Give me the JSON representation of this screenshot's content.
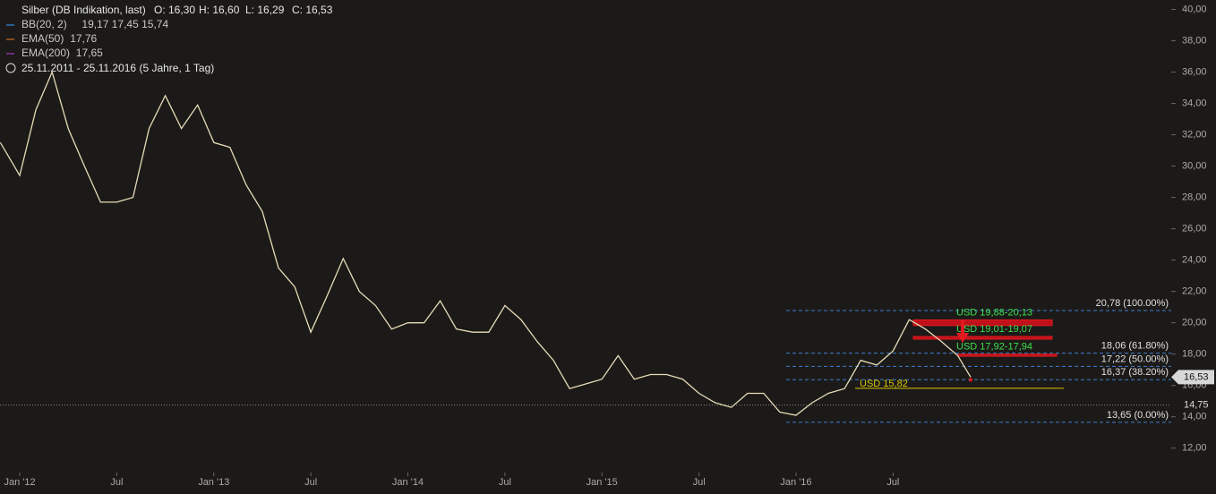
{
  "chart_data": {
    "type": "line",
    "title": "Silber (DB Indikation, last)",
    "ohlc": [
      "O: 16,30",
      "H: 16,60",
      "L: 16,29",
      "C: 16,53"
    ],
    "indicators": [
      {
        "name": "BB(20, 2)",
        "color": "#2b5f94",
        "text": "19,17  17,45  15,74"
      },
      {
        "name": "EMA(50)",
        "color": "#8a4a1e",
        "text": "17,76"
      },
      {
        "name": "EMA(200)",
        "color": "#6a2a80",
        "text": "17,65"
      }
    ],
    "period": "25.11.2011 - 25.11.2016  (5 Jahre, 1 Tag)",
    "xlim": [
      -1.22,
      71.2
    ],
    "xticks": [
      {
        "value": 0,
        "label": "Jan '12"
      },
      {
        "value": 6,
        "label": "Jul"
      },
      {
        "value": 12,
        "label": "Jan '13"
      },
      {
        "value": 18,
        "label": "Jul"
      },
      {
        "value": 24,
        "label": "Jan '14"
      },
      {
        "value": 30,
        "label": "Jul"
      },
      {
        "value": 36,
        "label": "Jan '15"
      },
      {
        "value": 42,
        "label": "Jul"
      },
      {
        "value": 48,
        "label": "Jan '16"
      },
      {
        "value": 54,
        "label": "Jul"
      }
    ],
    "ylim": [
      10.9,
      40.6
    ],
    "yticks": [
      {
        "value": 12,
        "label": "12,00"
      },
      {
        "value": 14,
        "label": "14,00"
      },
      {
        "value": 16,
        "label": "16,00"
      },
      {
        "value": 18,
        "label": "18,00"
      },
      {
        "value": 20,
        "label": "20,00"
      },
      {
        "value": 22,
        "label": "22,00"
      },
      {
        "value": 24,
        "label": "24,00"
      },
      {
        "value": 26,
        "label": "26,00"
      },
      {
        "value": 28,
        "label": "28,00"
      },
      {
        "value": 30,
        "label": "30,00"
      },
      {
        "value": 32,
        "label": "32,00"
      },
      {
        "value": 34,
        "label": "34,00"
      },
      {
        "value": 36,
        "label": "36,00"
      },
      {
        "value": 38,
        "label": "38,00"
      },
      {
        "value": 40,
        "label": "40,00"
      }
    ],
    "series": [
      {
        "name": "Silber",
        "color": "#e6dcb8",
        "x": [
          -1.2,
          0,
          1,
          2,
          3,
          4,
          5,
          6,
          7,
          8,
          9,
          10,
          11,
          12,
          13,
          14,
          15,
          16,
          17,
          18,
          19,
          20,
          21,
          22,
          23,
          24,
          25,
          26,
          27,
          28,
          29,
          30,
          31,
          32,
          33,
          34,
          35,
          36,
          37,
          38,
          39,
          40,
          41,
          42,
          43,
          44,
          45,
          46,
          47,
          48,
          49,
          50,
          51,
          52,
          53,
          54,
          55,
          56,
          57,
          58,
          58.8
        ],
        "values": [
          31.5,
          29.4,
          33.6,
          36,
          32.4,
          30,
          27.7,
          27.7,
          28,
          32.4,
          34.5,
          32.4,
          33.9,
          31.5,
          31.2,
          28.8,
          27.1,
          23.5,
          22.3,
          19.4,
          21.7,
          24.1,
          22,
          21.1,
          19.6,
          20,
          20,
          21.4,
          19.6,
          19.4,
          19.4,
          21.1,
          20.2,
          18.8,
          17.6,
          15.8,
          16.1,
          16.4,
          17.9,
          16.4,
          16.7,
          16.7,
          16.4,
          15.5,
          14.9,
          14.6,
          15.5,
          15.5,
          14.3,
          14.1,
          14.9,
          15.5,
          15.8,
          17.6,
          17.3,
          18.2,
          20.2,
          19.6,
          18.8,
          17.9,
          16.53
        ]
      }
    ],
    "fib_levels": [
      {
        "value": 20.78,
        "label": "20,78 (100.00%)"
      },
      {
        "value": 18.06,
        "label": "18,06 (61.80%)"
      },
      {
        "value": 17.22,
        "label": "17,22 (50.00%)"
      },
      {
        "value": 16.37,
        "label": "16,37 (38.20%)"
      },
      {
        "value": 13.65,
        "label": "13,65 (0.00%)"
      }
    ],
    "zones": [
      {
        "low": 19.88,
        "high": 20.13,
        "label": "USD 19,88-20,13"
      },
      {
        "low": 19.01,
        "high": 19.07,
        "label": "USD 19,01-19,07"
      },
      {
        "low": 17.92,
        "high": 17.94,
        "label": "USD 17,92-17,94"
      }
    ],
    "support": {
      "value": 15.82,
      "label": "USD 15,82"
    },
    "last_price": {
      "value": 16.53,
      "label": "16,53"
    },
    "ref_line": {
      "value": 14.75,
      "label": "14,75"
    }
  }
}
